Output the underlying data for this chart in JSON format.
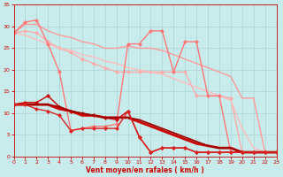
{
  "background_color": "#c8ecec",
  "grid_color": "#b0d8d8",
  "xlabel": "Vent moyen/en rafales ( km/h )",
  "xlabel_color": "#cc0000",
  "tick_color": "#cc0000",
  "xmin": 0,
  "xmax": 23,
  "ymin": 0,
  "ymax": 35,
  "yticks": [
    0,
    5,
    10,
    15,
    20,
    25,
    30,
    35
  ],
  "xticks": [
    0,
    1,
    2,
    3,
    4,
    5,
    6,
    7,
    8,
    9,
    10,
    11,
    12,
    13,
    14,
    15,
    16,
    17,
    18,
    19,
    20,
    21,
    22,
    23
  ],
  "lines": [
    {
      "x": [
        0,
        1,
        2,
        3,
        4,
        5,
        6,
        7,
        8,
        9,
        10,
        11,
        12,
        13,
        14,
        15,
        16,
        17,
        18,
        19,
        20,
        21,
        22,
        23
      ],
      "y": [
        28.5,
        30.5,
        30.5,
        29,
        28.0,
        27.5,
        26.5,
        26.0,
        25.0,
        25.0,
        25.5,
        25.0,
        25.0,
        24.5,
        23.5,
        22.5,
        21.5,
        20.5,
        19.5,
        18.5,
        13.5,
        13.5,
        1.0,
        1.0
      ],
      "color": "#ff9999",
      "lw": 1.0,
      "marker": null,
      "ms": 0
    },
    {
      "x": [
        0,
        1,
        2,
        3,
        4,
        5,
        6,
        7,
        8,
        9,
        10,
        11,
        12,
        13,
        14,
        15,
        16,
        17,
        18,
        19,
        20,
        21,
        22,
        23
      ],
      "y": [
        28.5,
        29.0,
        28.5,
        26.5,
        25.0,
        24.0,
        22.5,
        21.5,
        20.5,
        19.5,
        19.5,
        19.5,
        19.5,
        19.5,
        19.5,
        19.5,
        14.0,
        14.0,
        14.0,
        13.5,
        1.0,
        1.0,
        1.0,
        1.0
      ],
      "color": "#ffaaaa",
      "lw": 1.0,
      "marker": "D",
      "ms": 2
    },
    {
      "x": [
        0,
        1,
        2,
        3,
        4,
        5,
        6,
        7,
        8,
        9,
        10,
        11,
        12,
        13,
        14,
        15,
        16,
        17,
        18,
        19,
        20,
        21,
        22,
        23
      ],
      "y": [
        28.5,
        28.0,
        27.0,
        26.0,
        25.0,
        24.5,
        23.5,
        23.0,
        22.0,
        21.5,
        20.5,
        20.0,
        19.5,
        19.0,
        18.0,
        17.0,
        16.0,
        15.0,
        14.0,
        13.0,
        6.5,
        2.0,
        1.0,
        1.0
      ],
      "color": "#ffbbbb",
      "lw": 1.0,
      "marker": null,
      "ms": 0
    },
    {
      "x": [
        0,
        1,
        2,
        3,
        4,
        5,
        6,
        7,
        8,
        9,
        10,
        11,
        12,
        13,
        14,
        15,
        16,
        17,
        18,
        19,
        20,
        21,
        22,
        23
      ],
      "y": [
        28.5,
        31.0,
        31.5,
        26.0,
        19.5,
        6.0,
        6.5,
        7.0,
        7.0,
        7.5,
        26.0,
        26.0,
        29.0,
        29.0,
        19.5,
        26.5,
        26.5,
        14.0,
        14.0,
        1.0,
        1.0,
        1.0,
        1.0,
        1.0
      ],
      "color": "#ff7777",
      "lw": 1.0,
      "marker": "D",
      "ms": 2
    },
    {
      "x": [
        0,
        1,
        2,
        3,
        4,
        5,
        6,
        7,
        8,
        9,
        10,
        11,
        12,
        13,
        14,
        15,
        16,
        17,
        18,
        19,
        20,
        21,
        22,
        23
      ],
      "y": [
        12.0,
        12.5,
        12.5,
        14.0,
        11.5,
        10.5,
        10.0,
        9.5,
        9.0,
        8.5,
        10.5,
        4.5,
        1.0,
        2.0,
        2.0,
        2.0,
        1.0,
        1.0,
        1.0,
        1.0,
        1.0,
        1.0,
        1.0,
        1.0
      ],
      "color": "#cc0000",
      "lw": 1.0,
      "marker": "D",
      "ms": 2
    },
    {
      "x": [
        0,
        1,
        2,
        3,
        4,
        5,
        6,
        7,
        8,
        9,
        10,
        11,
        12,
        13,
        14,
        15,
        16,
        17,
        18,
        19,
        20,
        21,
        22,
        23
      ],
      "y": [
        12.0,
        12.0,
        12.0,
        12.0,
        11.0,
        10.5,
        9.5,
        9.5,
        9.0,
        9.0,
        9.0,
        8.0,
        7.0,
        6.0,
        5.0,
        4.0,
        3.0,
        2.5,
        2.0,
        2.0,
        1.0,
        1.0,
        1.0,
        1.0
      ],
      "color": "#cc0000",
      "lw": 2.0,
      "marker": null,
      "ms": 0
    },
    {
      "x": [
        0,
        1,
        2,
        3,
        4,
        5,
        6,
        7,
        8,
        9,
        10,
        11,
        12,
        13,
        14,
        15,
        16,
        17,
        18,
        19,
        20,
        21,
        22,
        23
      ],
      "y": [
        12.0,
        12.0,
        12.0,
        12.0,
        11.5,
        10.5,
        10.0,
        9.5,
        9.0,
        9.0,
        9.0,
        8.5,
        7.5,
        6.5,
        5.5,
        4.5,
        3.5,
        2.5,
        2.0,
        2.0,
        1.0,
        1.0,
        1.0,
        1.0
      ],
      "color": "#990000",
      "lw": 1.2,
      "marker": null,
      "ms": 0
    },
    {
      "x": [
        0,
        1,
        2,
        3,
        4,
        5,
        6,
        7,
        8,
        9,
        10,
        11,
        12,
        13,
        14,
        15,
        16,
        17,
        18,
        19,
        20,
        21,
        22,
        23
      ],
      "y": [
        12.0,
        12.0,
        11.0,
        10.5,
        9.5,
        6.0,
        6.5,
        6.5,
        6.5,
        6.5,
        10.5,
        4.5,
        1.0,
        2.0,
        2.0,
        2.0,
        1.0,
        1.0,
        1.0,
        1.0,
        1.0,
        1.0,
        1.0,
        1.0
      ],
      "color": "#dd2222",
      "lw": 1.0,
      "marker": "D",
      "ms": 2
    }
  ]
}
